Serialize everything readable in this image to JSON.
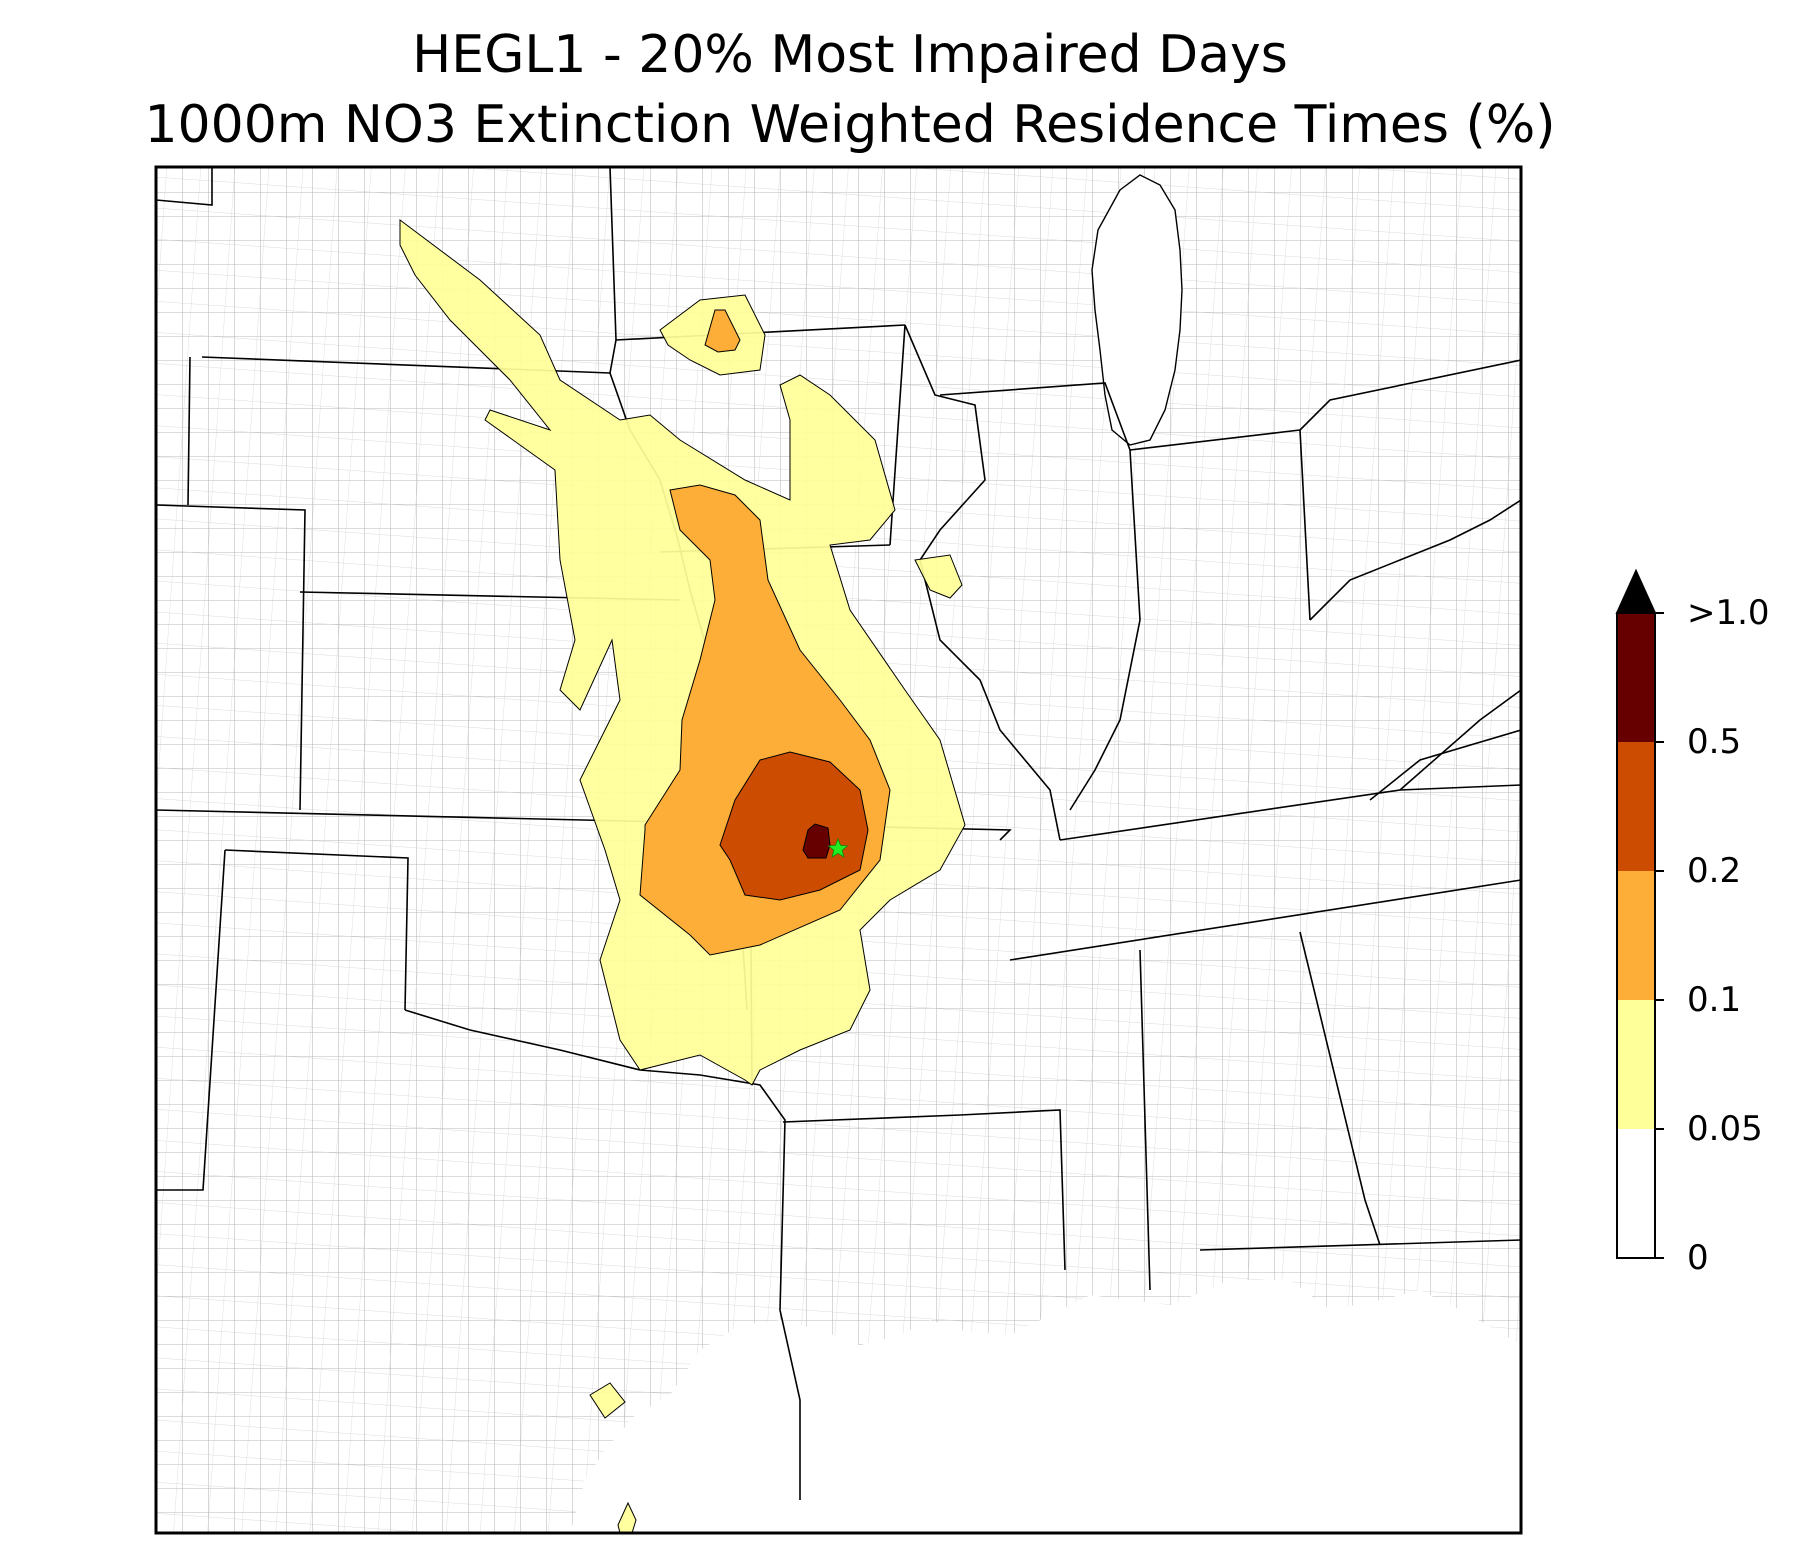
{
  "title": {
    "line1": "HEGL1 - 20% Most Impaired Days",
    "line2": "1000m NO3 Extinction Weighted Residence Times (%)"
  },
  "site_marker": {
    "icon": "star-icon",
    "color": "#22ee22"
  },
  "legend": {
    "levels": [
      {
        "label": "0",
        "color": "#ffffff"
      },
      {
        "label": "0.05",
        "color": "#ffff99"
      },
      {
        "label": "0.1",
        "color": "#fdae38"
      },
      {
        "label": "0.2",
        "color": "#cc4c02"
      },
      {
        "label": "0.5",
        "color": "#660000"
      },
      {
        "label": ">1.0",
        "color": "#000000"
      }
    ],
    "extend_arrow": "max"
  }
}
